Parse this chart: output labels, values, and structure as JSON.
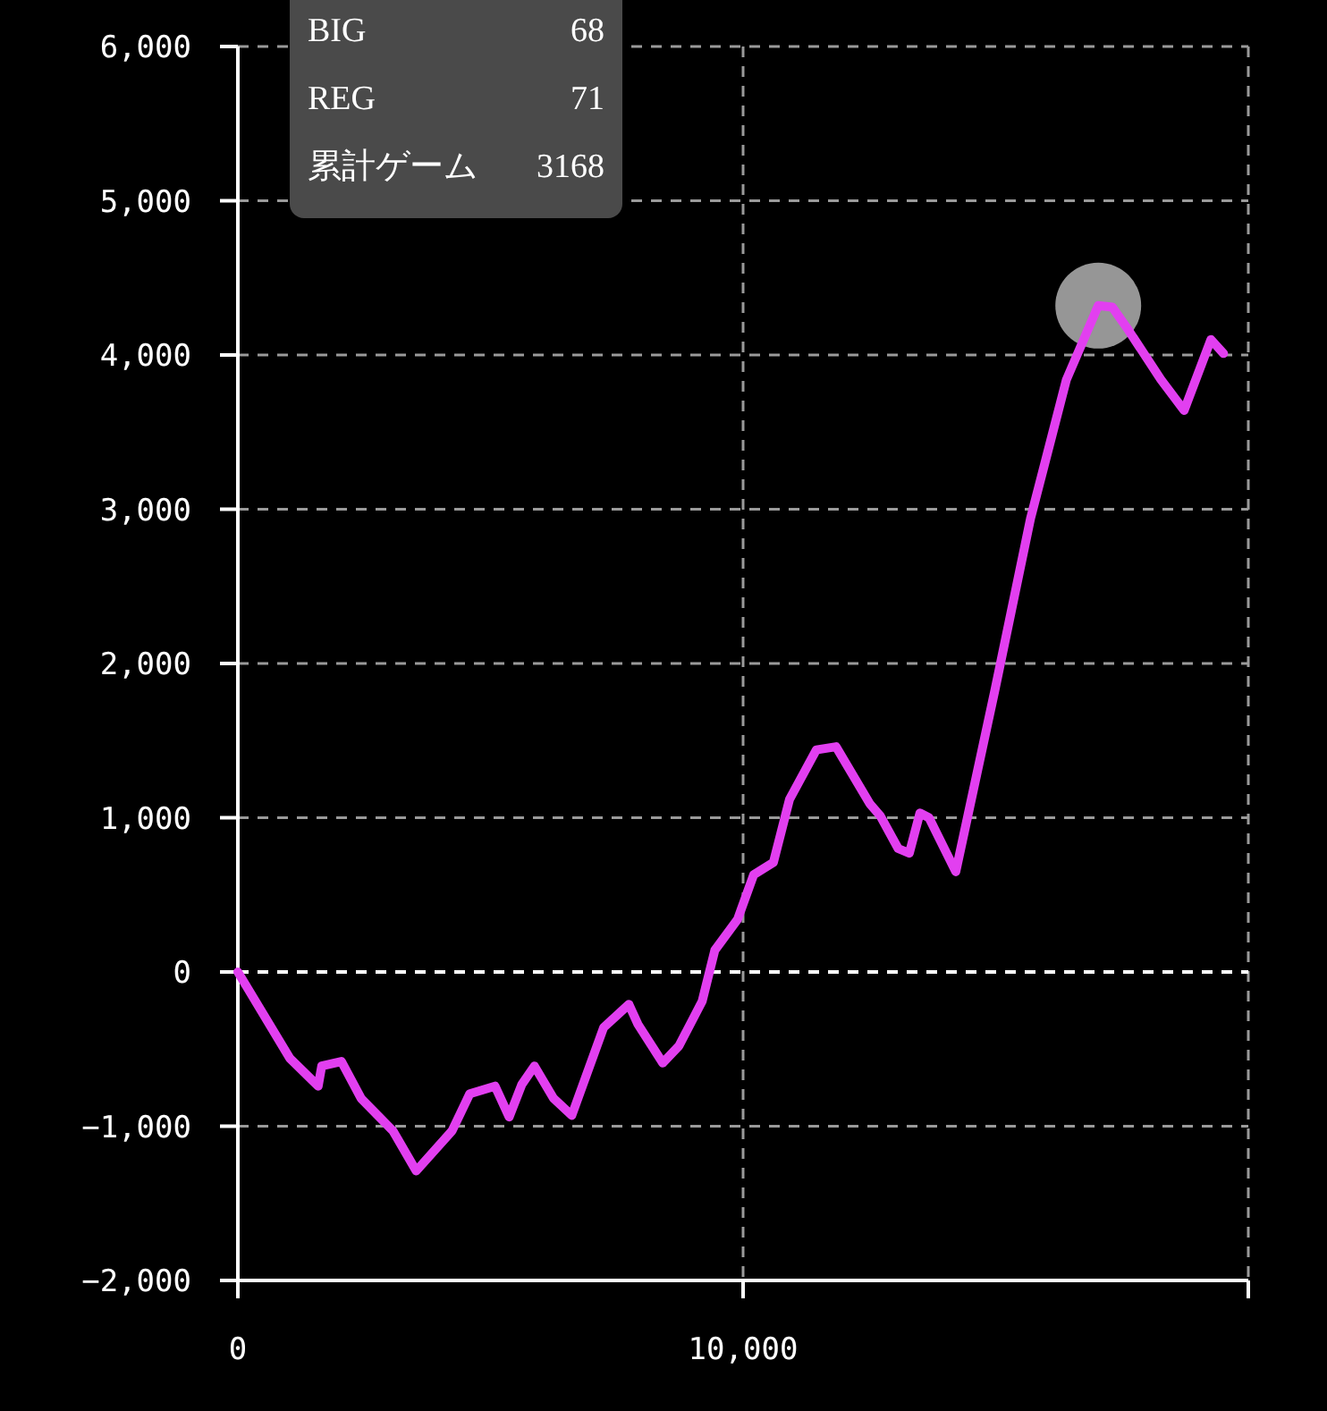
{
  "chart_data": {
    "type": "line",
    "x": [
      0,
      1030,
      1590,
      1660,
      2050,
      2440,
      3070,
      3530,
      4240,
      4590,
      5090,
      5370,
      5620,
      5870,
      6250,
      6610,
      7240,
      7740,
      7920,
      8410,
      8730,
      9190,
      9440,
      9890,
      10210,
      10600,
      10920,
      11450,
      11840,
      12510,
      12720,
      13070,
      13290,
      13500,
      13680,
      14210,
      14980,
      15690,
      16400,
      17030,
      17310,
      17630,
      18270,
      18730,
      19260,
      19510
    ],
    "series": [
      {
        "color": "#e23ff0",
        "values": [
          0,
          -560,
          -740,
          -610,
          -580,
          -820,
          -1030,
          -1290,
          -1030,
          -790,
          -740,
          -940,
          -730,
          -610,
          -820,
          -930,
          -360,
          -210,
          -340,
          -590,
          -480,
          -190,
          140,
          340,
          630,
          710,
          1120,
          1440,
          1460,
          1090,
          1010,
          800,
          770,
          1030,
          1000,
          650,
          1820,
          2940,
          3840,
          4320,
          4310,
          4160,
          3840,
          3640,
          4100,
          4010
        ]
      },
      {
        "type": "scatter",
        "color": "#b0b0b0",
        "x": [
          17030
        ],
        "values": [
          4320
        ]
      }
    ],
    "xlim": [
      0,
      20000
    ],
    "xticks": [
      0,
      {
        "value": 10000,
        "label": "10,000"
      },
      {
        "value": 20000,
        "label": null
      }
    ],
    "ylim": [
      -2000,
      6000
    ],
    "yticks": [
      {
        "value": -2000,
        "label": "−2,000"
      },
      {
        "value": -1000,
        "label": "−1,000"
      },
      0,
      {
        "value": 1000,
        "label": "1,000"
      },
      {
        "value": 2000,
        "label": "2,000"
      },
      {
        "value": 3000,
        "label": "3,000"
      },
      {
        "value": 4000,
        "label": "4,000"
      },
      {
        "value": 5000,
        "label": "5,000"
      },
      {
        "value": 6000,
        "label": "6,000"
      }
    ],
    "grid": true,
    "ref_lines": [
      {
        "axis": "y",
        "value": 0,
        "color": "#ffffff",
        "line_style": "dashed"
      }
    ],
    "annotations": [
      "BIG",
      "68",
      "REG",
      "71",
      "累計ゲーム",
      "3168"
    ]
  }
}
